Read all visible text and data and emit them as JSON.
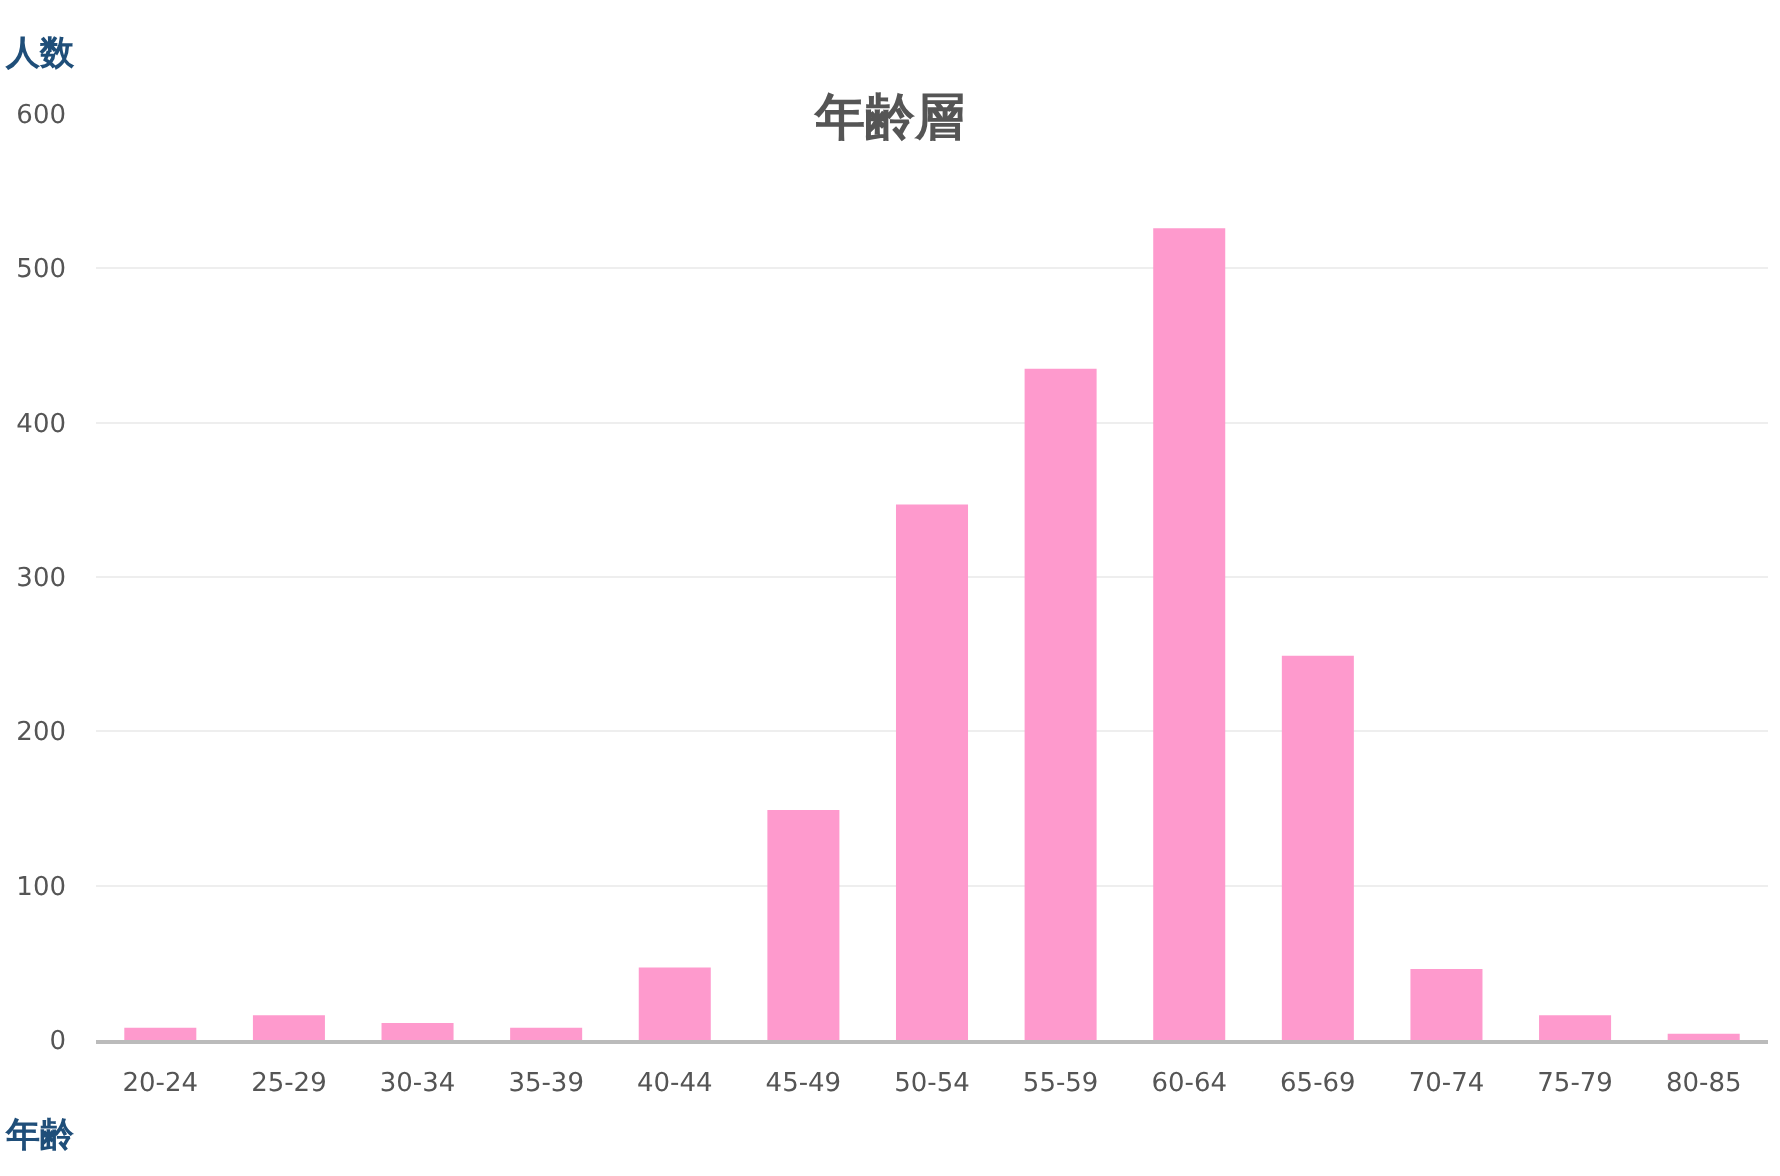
{
  "chart_data": {
    "type": "bar",
    "title": "年齢層",
    "xlabel": "年齢",
    "ylabel": "人数",
    "categories": [
      "20-24",
      "25-29",
      "30-34",
      "35-39",
      "40-44",
      "45-49",
      "50-54",
      "55-59",
      "60-64",
      "65-69",
      "70-74",
      "75-79",
      "80-85"
    ],
    "values": [
      8,
      16,
      11,
      8,
      47,
      149,
      347,
      435,
      526,
      249,
      46,
      16,
      4
    ],
    "color": "#fe9acd",
    "ylim": [
      0,
      600
    ],
    "yticks": [
      0,
      100,
      200,
      300,
      400,
      500,
      600
    ],
    "grid": "y"
  }
}
